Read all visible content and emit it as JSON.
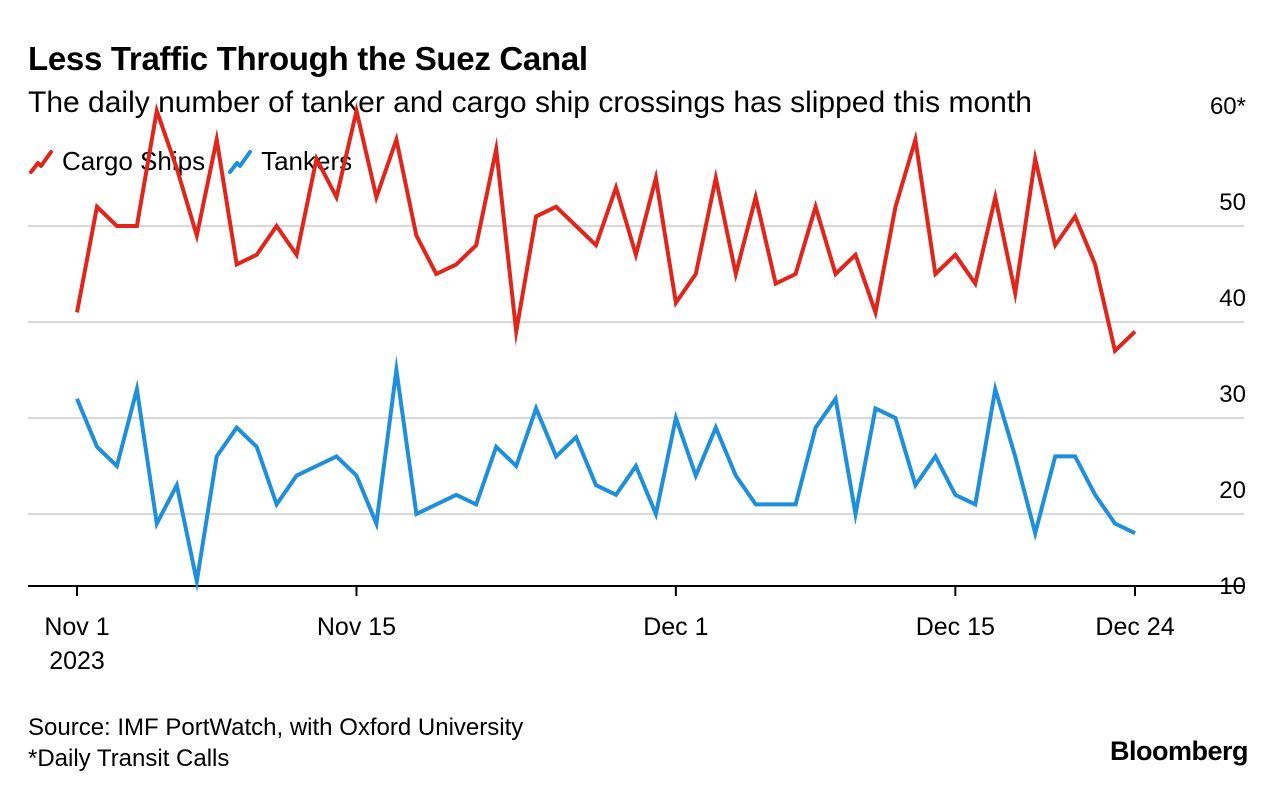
{
  "title": "Less Traffic Through the Suez Canal",
  "subtitle": "The daily number of tanker and cargo ship crossings has slipped this month",
  "source": "Source: IMF PortWatch, with Oxford University",
  "note": "*Daily Transit Calls",
  "brand": "Bloomberg",
  "colors": {
    "cargo": "#e1251b",
    "tankers": "#1e8fdc",
    "grid": "#d9d9d9",
    "axis": "#000000"
  },
  "chart_data": {
    "type": "line",
    "x": [
      "Nov 1",
      "Nov 2",
      "Nov 3",
      "Nov 4",
      "Nov 5",
      "Nov 6",
      "Nov 7",
      "Nov 8",
      "Nov 9",
      "Nov 10",
      "Nov 11",
      "Nov 12",
      "Nov 13",
      "Nov 14",
      "Nov 15",
      "Nov 16",
      "Nov 17",
      "Nov 18",
      "Nov 19",
      "Nov 20",
      "Nov 21",
      "Nov 22",
      "Nov 23",
      "Nov 24",
      "Nov 25",
      "Nov 26",
      "Nov 27",
      "Nov 28",
      "Nov 29",
      "Nov 30",
      "Dec 1",
      "Dec 2",
      "Dec 3",
      "Dec 4",
      "Dec 5",
      "Dec 6",
      "Dec 7",
      "Dec 8",
      "Dec 9",
      "Dec 10",
      "Dec 11",
      "Dec 12",
      "Dec 13",
      "Dec 14",
      "Dec 15",
      "Dec 16",
      "Dec 17",
      "Dec 18",
      "Dec 19",
      "Dec 20",
      "Dec 21",
      "Dec 22",
      "Dec 23",
      "Dec 24"
    ],
    "series": [
      {
        "name": "Cargo Ships",
        "color": "#e1251b",
        "values": [
          41,
          52,
          50,
          50,
          62,
          56,
          49,
          59,
          46,
          47,
          50,
          47,
          57,
          53,
          62,
          53,
          59,
          49,
          45,
          46,
          48,
          58,
          39,
          51,
          52,
          50,
          48,
          54,
          47,
          55,
          42,
          45,
          55,
          45,
          53,
          44,
          45,
          52,
          45,
          47,
          41,
          52,
          59,
          45,
          47,
          44,
          53,
          43,
          57,
          48,
          51,
          46,
          37,
          39
        ]
      },
      {
        "name": "Tankers",
        "color": "#1e8fdc",
        "values": [
          32,
          27,
          25,
          33,
          19,
          23,
          13,
          26,
          29,
          27,
          21,
          24,
          25,
          26,
          24,
          19,
          35,
          20,
          21,
          22,
          21,
          27,
          25,
          31,
          26,
          28,
          23,
          22,
          25,
          20,
          30,
          24,
          29,
          24,
          21,
          21,
          21,
          29,
          32,
          20,
          31,
          30,
          23,
          26,
          22,
          21,
          33,
          26,
          18,
          26,
          26,
          22,
          19,
          18
        ]
      }
    ],
    "x_tick_labels": [
      {
        "label": "Nov 1",
        "sublabel": "2023",
        "index": 0
      },
      {
        "label": "Nov 15",
        "sublabel": "",
        "index": 14
      },
      {
        "label": "Dec 1",
        "sublabel": "",
        "index": 30
      },
      {
        "label": "Dec 15",
        "sublabel": "",
        "index": 44
      },
      {
        "label": "Dec 24",
        "sublabel": "",
        "index": 53
      }
    ],
    "y_ticks": [
      {
        "value": 60,
        "label": "60*"
      },
      {
        "value": 50,
        "label": "50"
      },
      {
        "value": 40,
        "label": "40"
      },
      {
        "value": 30,
        "label": "30"
      },
      {
        "value": 20,
        "label": "20"
      },
      {
        "value": 10,
        "label": "10"
      }
    ],
    "ylim": [
      10,
      60
    ],
    "grid": true,
    "legend_position": "top-left",
    "y_axis_side": "right"
  }
}
